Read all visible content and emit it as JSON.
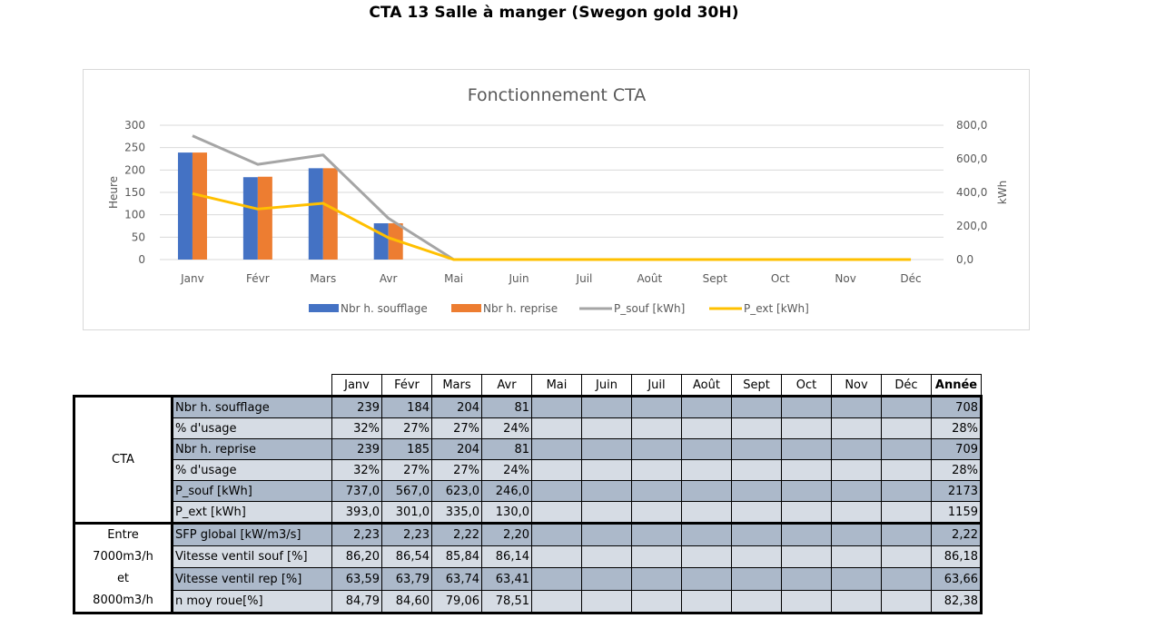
{
  "page": {
    "title": "CTA 13 Salle à manger (Swegon gold 30H)"
  },
  "chart_data": {
    "type": "bar",
    "title": "Fonctionnement CTA",
    "categories": [
      "Janv",
      "Févr",
      "Mars",
      "Avr",
      "Mai",
      "Juin",
      "Juil",
      "Août",
      "Sept",
      "Oct",
      "Nov",
      "Déc"
    ],
    "ylabel": "Heure",
    "ylim": [
      0,
      300
    ],
    "yticks": [
      "300",
      "250",
      "200",
      "150",
      "100",
      "50",
      "0"
    ],
    "y2label": "kWh",
    "y2lim": [
      0,
      800
    ],
    "y2ticks": [
      "800,0",
      "600,0",
      "400,0",
      "200,0",
      "0,0"
    ],
    "grid": true,
    "legend_position": "bottom",
    "series": [
      {
        "name": "Nbr h. soufflage",
        "kind": "bar",
        "axis": "left",
        "color": "#4472c4",
        "values": [
          239,
          184,
          204,
          81,
          0,
          0,
          0,
          0,
          0,
          0,
          0,
          0
        ]
      },
      {
        "name": "Nbr h. reprise",
        "kind": "bar",
        "axis": "left",
        "color": "#ed7d31",
        "values": [
          239,
          185,
          204,
          81,
          0,
          0,
          0,
          0,
          0,
          0,
          0,
          0
        ]
      },
      {
        "name": "P_souf [kWh]",
        "kind": "line",
        "axis": "right",
        "color": "#a5a5a5",
        "values": [
          737.0,
          567.0,
          623.0,
          246.0,
          0,
          0,
          0,
          0,
          0,
          0,
          0,
          0
        ]
      },
      {
        "name": "P_ext [kWh]",
        "kind": "line",
        "axis": "right",
        "color": "#ffc000",
        "values": [
          393.0,
          301.0,
          335.0,
          130.0,
          0,
          0,
          0,
          0,
          0,
          0,
          0,
          0
        ]
      }
    ]
  },
  "table": {
    "headers": [
      "Janv",
      "Févr",
      "Mars",
      "Avr",
      "Mai",
      "Juin",
      "Juil",
      "Août",
      "Sept",
      "Oct",
      "Nov",
      "Déc",
      "Année"
    ],
    "groups": [
      {
        "label_lines": [
          "CTA"
        ],
        "rows": [
          {
            "label": "Nbr h. soufflage",
            "values": [
              "239",
              "184",
              "204",
              "81",
              "",
              "",
              "",
              "",
              "",
              "",
              "",
              ""
            ],
            "year": "708"
          },
          {
            "label": "% d'usage",
            "values": [
              "32%",
              "27%",
              "27%",
              "24%",
              "",
              "",
              "",
              "",
              "",
              "",
              "",
              ""
            ],
            "year": "28%"
          },
          {
            "label": "Nbr h. reprise",
            "values": [
              "239",
              "185",
              "204",
              "81",
              "",
              "",
              "",
              "",
              "",
              "",
              "",
              ""
            ],
            "year": "709"
          },
          {
            "label": "% d'usage",
            "values": [
              "32%",
              "27%",
              "27%",
              "24%",
              "",
              "",
              "",
              "",
              "",
              "",
              "",
              ""
            ],
            "year": "28%"
          },
          {
            "label": "P_souf [kWh]",
            "values": [
              "737,0",
              "567,0",
              "623,0",
              "246,0",
              "",
              "",
              "",
              "",
              "",
              "",
              "",
              ""
            ],
            "year": "2173"
          },
          {
            "label": "P_ext [kWh]",
            "values": [
              "393,0",
              "301,0",
              "335,0",
              "130,0",
              "",
              "",
              "",
              "",
              "",
              "",
              "",
              ""
            ],
            "year": "1159"
          }
        ]
      },
      {
        "label_lines": [
          "Entre",
          "7000m3/h",
          "et",
          "8000m3/h"
        ],
        "rows": [
          {
            "label": "SFP global [kW/m3/s]",
            "values": [
              "2,23",
              "2,23",
              "2,22",
              "2,20",
              "",
              "",
              "",
              "",
              "",
              "",
              "",
              ""
            ],
            "year": "2,22"
          },
          {
            "label": "Vitesse ventil souf [%]",
            "values": [
              "86,20",
              "86,54",
              "85,84",
              "86,14",
              "",
              "",
              "",
              "",
              "",
              "",
              "",
              ""
            ],
            "year": "86,18"
          },
          {
            "label": "Vitesse ventil rep [%]",
            "values": [
              "63,59",
              "63,79",
              "63,74",
              "63,41",
              "",
              "",
              "",
              "",
              "",
              "",
              "",
              ""
            ],
            "year": "63,66"
          },
          {
            "label": "n moy roue[%]",
            "values": [
              "84,79",
              "84,60",
              "79,06",
              "78,51",
              "",
              "",
              "",
              "",
              "",
              "",
              "",
              ""
            ],
            "year": "82,38"
          }
        ]
      }
    ]
  }
}
